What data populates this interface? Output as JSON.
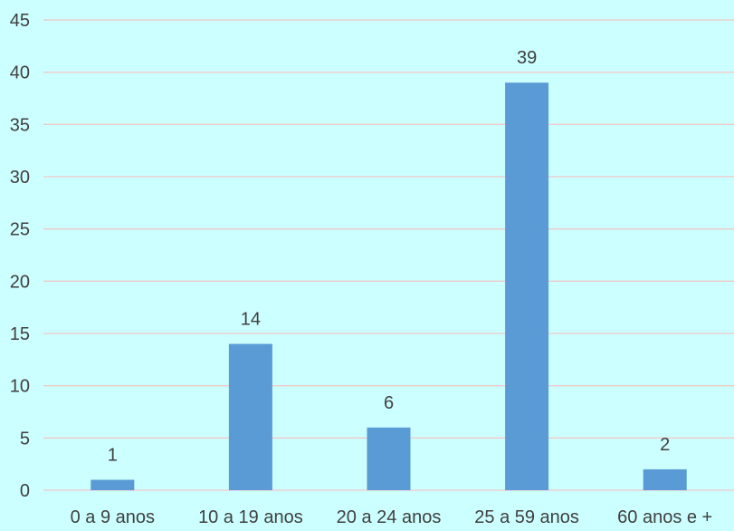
{
  "chart_data": {
    "type": "bar",
    "categories": [
      "0 a 9 anos",
      "10 a 19 anos",
      "20 a 24 anos",
      "25 a 59 anos",
      "60 anos e +"
    ],
    "values": [
      1,
      14,
      6,
      39,
      2
    ],
    "data_labels": [
      "1",
      "14",
      "6",
      "39",
      "2"
    ],
    "y_ticks": [
      0,
      5,
      10,
      15,
      20,
      25,
      30,
      35,
      40,
      45
    ],
    "ylim": [
      0,
      45
    ],
    "grid": true,
    "title": "",
    "xlabel": "",
    "ylabel": ""
  },
  "colors": {
    "background": "#ccffff",
    "bar": "#5b9bd5",
    "grid": "#f2c8c8",
    "text": "#404040"
  }
}
